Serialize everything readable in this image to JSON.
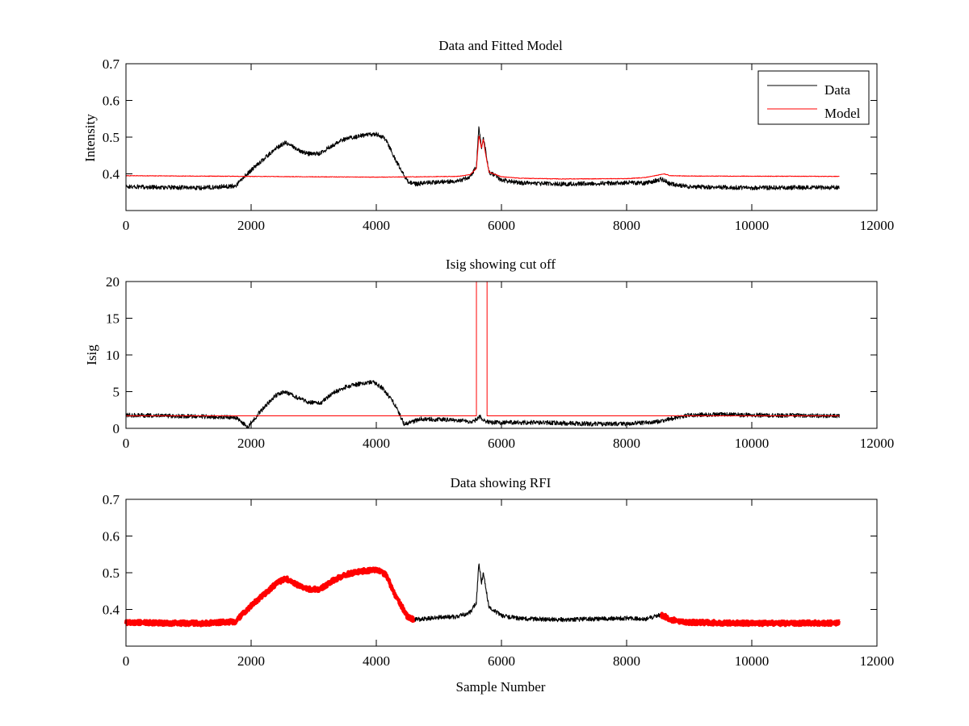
{
  "chart_data": [
    {
      "type": "line",
      "title": "Data and Fitted Model",
      "xlabel": "",
      "ylabel": "Intensity",
      "xlim": [
        0,
        12000
      ],
      "ylim": [
        0.3,
        0.7
      ],
      "xticks": [
        0,
        2000,
        4000,
        6000,
        8000,
        10000,
        12000
      ],
      "yticks": [
        0.4,
        0.5,
        0.6,
        0.7
      ],
      "xtick_labels": [
        "0",
        "2000",
        "4000",
        "6000",
        "8000",
        "10000",
        "12000"
      ],
      "ytick_labels": [
        "0.4",
        "0.5",
        "0.6",
        "0.7"
      ],
      "grid": false,
      "legend": {
        "position": "top-right",
        "entries": [
          "Data",
          "Model"
        ]
      },
      "series": [
        {
          "name": "Data",
          "color": "#000000",
          "noise": 0.006,
          "x": [
            0,
            600,
            1200,
            1750,
            1850,
            2000,
            2200,
            2400,
            2550,
            2700,
            2900,
            3100,
            3300,
            3500,
            3800,
            4000,
            4150,
            4300,
            4500,
            4600,
            4800,
            5000,
            5300,
            5500,
            5600,
            5640,
            5680,
            5710,
            5740,
            5800,
            6000,
            6300,
            7000,
            7500,
            8000,
            8300,
            8550,
            8600,
            8700,
            9000,
            10000,
            11400
          ],
          "y": [
            0.365,
            0.363,
            0.362,
            0.367,
            0.385,
            0.41,
            0.44,
            0.47,
            0.485,
            0.47,
            0.455,
            0.455,
            0.478,
            0.495,
            0.505,
            0.508,
            0.495,
            0.44,
            0.38,
            0.372,
            0.375,
            0.378,
            0.38,
            0.392,
            0.42,
            0.53,
            0.47,
            0.5,
            0.47,
            0.405,
            0.383,
            0.375,
            0.372,
            0.374,
            0.376,
            0.374,
            0.385,
            0.382,
            0.372,
            0.365,
            0.362,
            0.363
          ]
        },
        {
          "name": "Model",
          "color": "#ff0000",
          "noise": 0.0008,
          "x": [
            0,
            2000,
            4000,
            5300,
            5500,
            5600,
            5640,
            5680,
            5710,
            5740,
            5800,
            6000,
            6300,
            7000,
            8000,
            8300,
            8550,
            8600,
            8700,
            9000,
            11400
          ],
          "y": [
            0.395,
            0.393,
            0.391,
            0.393,
            0.398,
            0.415,
            0.505,
            0.47,
            0.495,
            0.46,
            0.405,
            0.392,
            0.388,
            0.386,
            0.387,
            0.39,
            0.398,
            0.4,
            0.395,
            0.394,
            0.393
          ]
        }
      ]
    },
    {
      "type": "line",
      "title": "Isig showing cut off",
      "xlabel": "",
      "ylabel": "Isig",
      "xlim": [
        0,
        12000
      ],
      "ylim": [
        0,
        20
      ],
      "xticks": [
        0,
        2000,
        4000,
        6000,
        8000,
        10000,
        12000
      ],
      "yticks": [
        0,
        5,
        10,
        15,
        20
      ],
      "xtick_labels": [
        "0",
        "2000",
        "4000",
        "6000",
        "8000",
        "10000",
        "12000"
      ],
      "ytick_labels": [
        "0",
        "5",
        "10",
        "15",
        "20"
      ],
      "grid": false,
      "series": [
        {
          "color": "#000000",
          "noise": 0.3,
          "x": [
            0,
            600,
            1200,
            1750,
            1850,
            1950,
            2000,
            2200,
            2400,
            2550,
            2700,
            2900,
            3100,
            3300,
            3500,
            3800,
            3950,
            4100,
            4300,
            4450,
            4550,
            4700,
            5000,
            5300,
            5550,
            5620,
            5660,
            5700,
            5800,
            6000,
            6500,
            7000,
            7500,
            8000,
            8500,
            8700,
            9000,
            9500,
            10000,
            11400
          ],
          "y": [
            1.8,
            1.7,
            1.6,
            1.5,
            0.8,
            0.1,
            0.8,
            2.8,
            4.5,
            5.0,
            4.3,
            3.6,
            3.4,
            4.8,
            5.6,
            6.2,
            6.3,
            5.5,
            3.2,
            0.5,
            0.8,
            1.3,
            1.2,
            1.1,
            0.9,
            1.4,
            1.6,
            1.2,
            0.8,
            0.8,
            0.8,
            0.7,
            0.6,
            0.6,
            0.9,
            1.3,
            1.8,
            1.9,
            1.8,
            1.7
          ]
        },
        {
          "color": "#ff0000",
          "noise": 0,
          "x": [
            0,
            5600,
            5600,
            5610,
            5610,
            5770,
            5770,
            11400
          ],
          "y": [
            1.7,
            1.7,
            21,
            21,
            21,
            21,
            1.7,
            1.7
          ]
        }
      ]
    },
    {
      "type": "line",
      "title": "Data showing RFI",
      "xlabel": "Sample Number",
      "ylabel": "",
      "xlim": [
        0,
        12000
      ],
      "ylim": [
        0.3,
        0.7
      ],
      "xticks": [
        0,
        2000,
        4000,
        6000,
        8000,
        10000,
        12000
      ],
      "yticks": [
        0.4,
        0.5,
        0.6,
        0.7
      ],
      "xtick_labels": [
        "0",
        "2000",
        "4000",
        "6000",
        "8000",
        "10000",
        "12000"
      ],
      "ytick_labels": [
        "0.4",
        "0.5",
        "0.6",
        "0.7"
      ],
      "grid": false,
      "series": [
        {
          "color": "#000000",
          "noise": 0.006,
          "x": [
            4600,
            4800,
            5000,
            5300,
            5500,
            5600,
            5640,
            5680,
            5710,
            5740,
            5800,
            6000,
            6300,
            7000,
            7500,
            8000,
            8300,
            8550
          ],
          "y": [
            0.372,
            0.375,
            0.378,
            0.38,
            0.392,
            0.42,
            0.53,
            0.47,
            0.5,
            0.47,
            0.405,
            0.383,
            0.375,
            0.372,
            0.374,
            0.376,
            0.374,
            0.385
          ]
        },
        {
          "color": "#ff0000",
          "noise": 0.006,
          "segments": [
            {
              "x": [
                0,
                600,
                1200,
                1750,
                1850,
                2000,
                2200,
                2400,
                2550,
                2700,
                2900,
                3100,
                3300,
                3500,
                3800,
                4000,
                4150,
                4300,
                4500,
                4600
              ],
              "y": [
                0.365,
                0.363,
                0.362,
                0.367,
                0.385,
                0.41,
                0.44,
                0.47,
                0.485,
                0.47,
                0.455,
                0.455,
                0.478,
                0.495,
                0.505,
                0.508,
                0.495,
                0.44,
                0.38,
                0.372
              ]
            },
            {
              "x": [
                8550,
                8600,
                8700,
                9000,
                10000,
                11400
              ],
              "y": [
                0.385,
                0.382,
                0.372,
                0.365,
                0.362,
                0.363
              ]
            }
          ]
        }
      ]
    }
  ]
}
